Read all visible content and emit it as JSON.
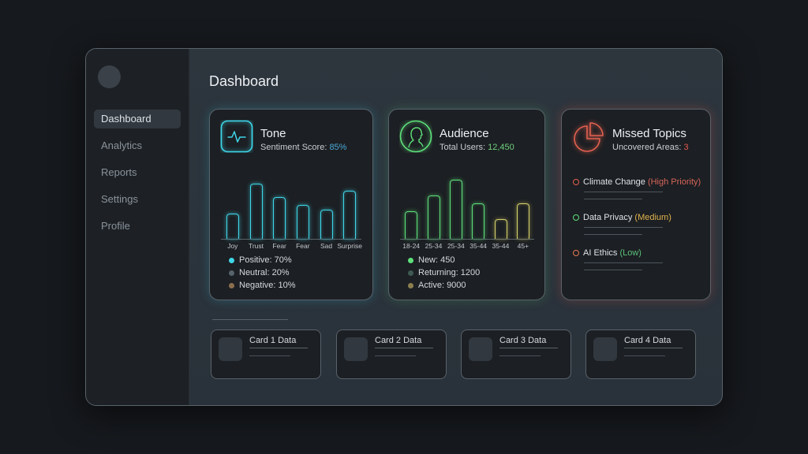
{
  "sidebar": {
    "items": [
      {
        "label": "Dashboard",
        "active": true
      },
      {
        "label": "Analytics",
        "active": false
      },
      {
        "label": "Reports",
        "active": false
      },
      {
        "label": "Settings",
        "active": false
      },
      {
        "label": "Profile",
        "active": false
      }
    ]
  },
  "header": {
    "title": "Dashboard"
  },
  "tone": {
    "title": "Tone",
    "sub_label": "Sentiment Score: ",
    "sub_value": "85%",
    "sub_color": "#4aa8d8",
    "icon": "pulse-icon",
    "legend": [
      {
        "label": "Positive: 70%",
        "color": "#3fd6e8"
      },
      {
        "label": "Neutral: 20%",
        "color": "#56636b"
      },
      {
        "label": "Negative: 10%",
        "color": "#8b6e4e"
      }
    ]
  },
  "audience": {
    "title": "Audience",
    "sub_label": "Total Users: ",
    "sub_value": "12,450",
    "sub_color": "#6fd07e",
    "icon": "user-profile-icon",
    "legend": [
      {
        "label": "New: 450",
        "color": "#5ee07a"
      },
      {
        "label": "Returning: 1200",
        "color": "#3e5a52"
      },
      {
        "label": "Active: 9000",
        "color": "#8c7f4e"
      }
    ]
  },
  "missed": {
    "title": "Missed Topics",
    "sub_label": "Uncovered Areas: ",
    "sub_value": "3",
    "sub_color": "#e35a4e",
    "icon": "pie-chart-icon",
    "topics": [
      {
        "name": "Climate Change ",
        "priority": "(High Priority)",
        "ring_color": "#e2604f",
        "priority_color": "#d8655a"
      },
      {
        "name": "Data Privacy ",
        "priority": "(Medium)",
        "ring_color": "#5ee07a",
        "priority_color": "#e0b24f"
      },
      {
        "name": "AI Ethics ",
        "priority": "(Low)",
        "ring_color": "#e67a4f",
        "priority_color": "#5bc27a"
      }
    ]
  },
  "mini_cards": [
    {
      "label": "Card 1 Data"
    },
    {
      "label": "Card 2 Data"
    },
    {
      "label": "Card 3 Data"
    },
    {
      "label": "Card 4 Data"
    }
  ],
  "colors": {
    "accent_cyan": "#3fd6e8",
    "accent_green": "#5ee07a",
    "accent_red": "#e2604f",
    "background": "#16191d",
    "panel": "#1c1f23"
  },
  "chart_data": [
    {
      "type": "bar",
      "title": "Tone",
      "categories": [
        "Joy",
        "Trust",
        "Fear",
        "Fear",
        "Sad",
        "Surprise"
      ],
      "values": [
        36,
        80,
        60,
        49,
        42,
        69
      ],
      "xlabel": "",
      "ylabel": "",
      "ylim": [
        0,
        100
      ],
      "grid": false
    },
    {
      "type": "bar",
      "title": "Audience",
      "categories": [
        "18-24",
        "25-34",
        "25-34",
        "35-44",
        "35-44",
        "45+"
      ],
      "values": [
        40,
        63,
        85,
        51,
        28,
        51
      ],
      "xlabel": "",
      "ylabel": "",
      "ylim": [
        0,
        100
      ],
      "grid": false
    }
  ]
}
